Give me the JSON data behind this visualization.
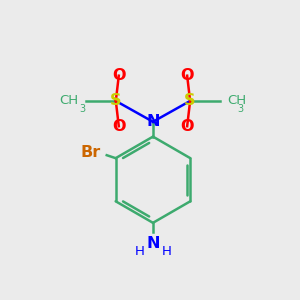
{
  "bg_color": "#ebebeb",
  "atom_colors": {
    "C": "#3daa6e",
    "N": "#0000ff",
    "O": "#ff0000",
    "S": "#cccc00",
    "Br": "#cc6600",
    "H": "#3daa6e"
  },
  "bond_color": "#3daa6e",
  "figsize": [
    3.0,
    3.0
  ],
  "dpi": 100
}
